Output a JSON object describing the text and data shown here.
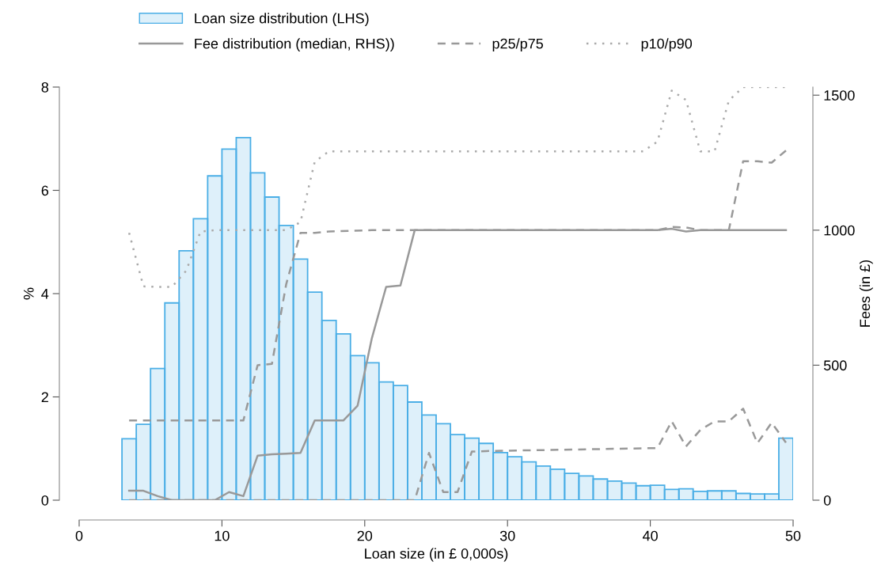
{
  "chart_data": {
    "type": "histogram",
    "xlabel": "Loan size (in £ 0,000s)",
    "ylabel": "%",
    "y2label": "Fees (in £)",
    "xlim": [
      0,
      50
    ],
    "xticks": [
      0,
      10,
      20,
      30,
      40,
      50
    ],
    "ylim": [
      0,
      8
    ],
    "yticks": [
      0,
      2,
      4,
      6,
      8
    ],
    "y2lim": [
      0,
      1530
    ],
    "y2ticks": [
      0,
      500,
      1000,
      1500
    ],
    "grid": false,
    "legend": "top left",
    "bins": [
      3,
      4,
      5,
      6,
      7,
      8,
      9,
      10,
      11,
      12,
      13,
      14,
      15,
      16,
      17,
      18,
      19,
      20,
      21,
      22,
      23,
      24,
      25,
      26,
      27,
      28,
      29,
      30,
      31,
      32,
      33,
      34,
      35,
      36,
      37,
      38,
      39,
      40,
      41,
      42,
      43,
      44,
      45,
      46,
      47,
      48,
      49,
      50
    ],
    "series": [
      {
        "name": "Loan size distribution (LHS)",
        "color": "#4aaee6",
        "values": [
          1.19,
          1.47,
          2.55,
          3.82,
          4.83,
          5.45,
          6.28,
          6.8,
          7.02,
          6.34,
          5.87,
          5.32,
          4.67,
          4.03,
          3.48,
          3.22,
          2.8,
          2.66,
          2.29,
          2.22,
          1.9,
          1.65,
          1.48,
          1.27,
          1.2,
          1.1,
          0.92,
          0.84,
          0.74,
          0.66,
          0.6,
          0.52,
          0.47,
          0.41,
          0.37,
          0.33,
          0.28,
          0.29,
          0.21,
          0.22,
          0.17,
          0.18,
          0.18,
          0.13,
          0.12,
          0.12,
          1.2
        ]
      },
      {
        "name": "Fee distribution (median, RHS))",
        "type": "line",
        "axis": "y2",
        "color": "#999999",
        "line_style": "solid",
        "x": [
          3.5,
          4.5,
          5.5,
          6.5,
          7.5,
          8.5,
          9.5,
          10.5,
          11.5,
          12.5,
          13.5,
          14.5,
          15.5,
          16.5,
          17.5,
          18.5,
          19.5,
          20.5,
          21.5,
          22.5,
          23.5,
          30.5,
          40.5,
          41.5,
          42.5,
          43.5,
          49.5
        ],
        "values": [
          35,
          35,
          15,
          0,
          0,
          0,
          0,
          30,
          15,
          165,
          170,
          172,
          175,
          295,
          295,
          295,
          350,
          600,
          790,
          795,
          1000,
          1000,
          1000,
          1005,
          995,
          1000,
          1000
        ]
      },
      {
        "name": "p25/p75",
        "type": "line",
        "axis": "y2",
        "color": "#999999",
        "line_style": "dashed",
        "x": [
          3.5,
          11.5,
          12.5,
          13.5,
          14.5,
          15.5,
          16.5,
          17.5,
          20.5,
          40.5,
          41.5,
          42.5,
          43.5,
          44.5,
          45.5,
          46.5,
          47.5,
          48.5,
          49.5
        ],
        "values": [
          295,
          295,
          500,
          505,
          800,
          990,
          990,
          995,
          1000,
          1000,
          1012,
          1010,
          1000,
          1000,
          1000,
          1255,
          1255,
          1250,
          1295
        ]
      },
      {
        "type": "line",
        "axis": "y2",
        "color": "#999999",
        "line_style": "dashed",
        "x": [
          3.5,
          23.5,
          24.5,
          25.5,
          26.5,
          27.5,
          28.5,
          40.5,
          41.5,
          42.5,
          43.5,
          44.5,
          45.5,
          46.5,
          47.5,
          48.5,
          49.5
        ],
        "values": [
          0,
          0,
          175,
          30,
          30,
          180,
          182,
          193,
          292,
          199,
          260,
          292,
          292,
          339,
          211,
          287,
          213
        ]
      },
      {
        "name": "p10/p90",
        "type": "line",
        "axis": "y2",
        "color": "#aaaaaa",
        "line_style": "dotted",
        "x": [
          3.5,
          4.5,
          5.5,
          6.5,
          7.5,
          8.5,
          9.5,
          14.5,
          15.5,
          16.5,
          17.5,
          39.5,
          40.5,
          41.5,
          42.5,
          43.5,
          44.5,
          45.5,
          46.5,
          49.5
        ],
        "values": [
          990,
          792,
          790,
          790,
          850,
          995,
          1000,
          1000,
          1030,
          1254,
          1292,
          1292,
          1328,
          1517,
          1482,
          1292,
          1292,
          1480,
          1530,
          1530
        ]
      }
    ]
  }
}
